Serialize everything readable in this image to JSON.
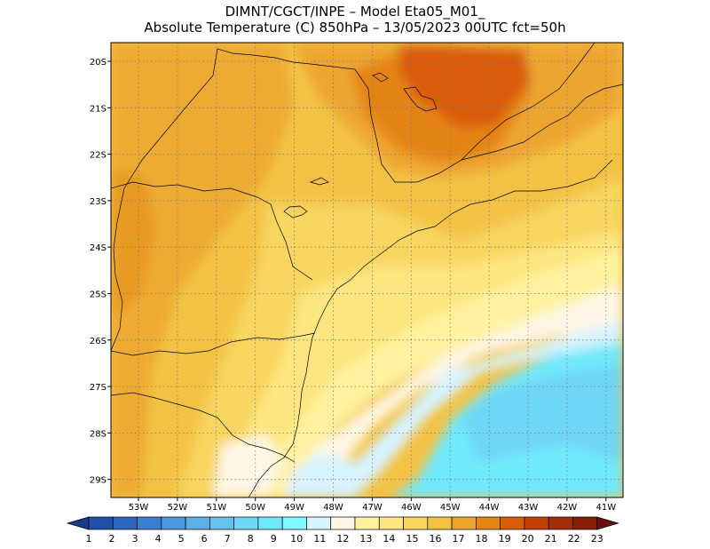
{
  "header": {
    "line1": "DIMNT/CGCT/INPE –  Model Eta05_M01_",
    "line2": "Absolute Temperature (C) 850hPa –  13/05/2023 00UTC fct=50h"
  },
  "map": {
    "lat_labels": [
      "20S",
      "21S",
      "22S",
      "23S",
      "24S",
      "25S",
      "26S",
      "27S",
      "28S",
      "29S"
    ],
    "lon_labels": [
      "53W",
      "52W",
      "51W",
      "50W",
      "49W",
      "48W",
      "47W",
      "46W",
      "45W",
      "44W",
      "43W",
      "42W",
      "41W"
    ],
    "grid": "dotted"
  },
  "colorbar": {
    "labels": [
      "1",
      "2",
      "3",
      "4",
      "5",
      "6",
      "7",
      "8",
      "9",
      "10",
      "11",
      "12",
      "13",
      "14",
      "15",
      "16",
      "17",
      "18",
      "19",
      "20",
      "21",
      "22",
      "23"
    ],
    "colors": [
      "#1a3a8c",
      "#1f4fa8",
      "#2b66bd",
      "#3a7fcf",
      "#4b98dc",
      "#5bb0e6",
      "#67c3ee",
      "#6fd6f5",
      "#70e8fb",
      "#7ff8ff",
      "#d6f3ff",
      "#fff7e6",
      "#fff2a0",
      "#fde680",
      "#f8d660",
      "#f3c245",
      "#eda530",
      "#e58417",
      "#d95c0a",
      "#c24107",
      "#a52d08",
      "#862009",
      "#6a1010"
    ]
  }
}
